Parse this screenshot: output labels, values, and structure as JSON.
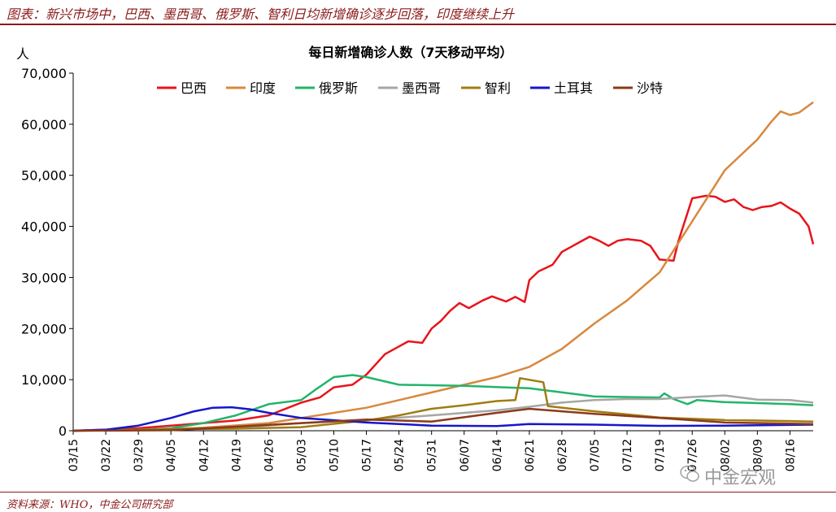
{
  "figure_title": "图表：新兴市场中，巴西、墨西哥、俄罗斯、智利日均新增确诊逐步回落，印度继续上升",
  "source": "资料来源：WHO，中金公司研究部",
  "watermark": {
    "text": "中金宏观",
    "icon": "wechat-icon"
  },
  "chart_data": {
    "type": "line",
    "title": "每日新增确诊人数（7天移动平均）",
    "ylabel": "人",
    "ylim": [
      0,
      70000
    ],
    "yticks": [
      "0",
      "10,000",
      "20,000",
      "30,000",
      "40,000",
      "50,000",
      "60,000",
      "70,000"
    ],
    "x_start": "03/15",
    "x_end": "08/21",
    "xticks": [
      "03/15",
      "03/22",
      "03/29",
      "04/05",
      "04/12",
      "04/19",
      "04/26",
      "05/03",
      "05/10",
      "05/17",
      "05/24",
      "05/31",
      "06/07",
      "06/14",
      "06/21",
      "06/28",
      "07/05",
      "07/12",
      "07/19",
      "07/26",
      "08/02",
      "08/09",
      "08/16"
    ],
    "legend_position": "top",
    "series": [
      {
        "name": "巴西",
        "color": "#e8141b",
        "points": [
          [
            "03/15",
            0
          ],
          [
            "03/22",
            200
          ],
          [
            "03/29",
            500
          ],
          [
            "04/05",
            1000
          ],
          [
            "04/12",
            1500
          ],
          [
            "04/19",
            2000
          ],
          [
            "04/26",
            3000
          ],
          [
            "05/03",
            5500
          ],
          [
            "05/07",
            6500
          ],
          [
            "05/10",
            8500
          ],
          [
            "05/14",
            9000
          ],
          [
            "05/17",
            11000
          ],
          [
            "05/21",
            15000
          ],
          [
            "05/24",
            16500
          ],
          [
            "05/26",
            17500
          ],
          [
            "05/29",
            17200
          ],
          [
            "05/31",
            20000
          ],
          [
            "06/02",
            21500
          ],
          [
            "06/04",
            23500
          ],
          [
            "06/06",
            25000
          ],
          [
            "06/08",
            24000
          ],
          [
            "06/11",
            25500
          ],
          [
            "06/13",
            26300
          ],
          [
            "06/16",
            25300
          ],
          [
            "06/18",
            26200
          ],
          [
            "06/20",
            25200
          ],
          [
            "06/21",
            29500
          ],
          [
            "06/23",
            31200
          ],
          [
            "06/26",
            32500
          ],
          [
            "06/28",
            35000
          ],
          [
            "06/30",
            36000
          ],
          [
            "07/02",
            37000
          ],
          [
            "07/04",
            38000
          ],
          [
            "07/06",
            37200
          ],
          [
            "07/08",
            36200
          ],
          [
            "07/10",
            37200
          ],
          [
            "07/12",
            37500
          ],
          [
            "07/15",
            37200
          ],
          [
            "07/17",
            36200
          ],
          [
            "07/19",
            33500
          ],
          [
            "07/22",
            33300
          ],
          [
            "07/23",
            37000
          ],
          [
            "07/26",
            45500
          ],
          [
            "07/29",
            46000
          ],
          [
            "07/31",
            45800
          ],
          [
            "08/02",
            44800
          ],
          [
            "08/04",
            45300
          ],
          [
            "08/06",
            43800
          ],
          [
            "08/08",
            43200
          ],
          [
            "08/10",
            43800
          ],
          [
            "08/12",
            44000
          ],
          [
            "08/14",
            44700
          ],
          [
            "08/16",
            43500
          ],
          [
            "08/18",
            42500
          ],
          [
            "08/20",
            40000
          ],
          [
            "08/21",
            36500
          ]
        ]
      },
      {
        "name": "印度",
        "color": "#d8883e",
        "points": [
          [
            "03/15",
            0
          ],
          [
            "03/29",
            100
          ],
          [
            "04/12",
            600
          ],
          [
            "04/26",
            1500
          ],
          [
            "05/10",
            3500
          ],
          [
            "05/17",
            4500
          ],
          [
            "05/24",
            6000
          ],
          [
            "05/31",
            7500
          ],
          [
            "06/07",
            9000
          ],
          [
            "06/14",
            10500
          ],
          [
            "06/21",
            12500
          ],
          [
            "06/28",
            16000
          ],
          [
            "07/05",
            21000
          ],
          [
            "07/12",
            25500
          ],
          [
            "07/19",
            31000
          ],
          [
            "07/26",
            41000
          ],
          [
            "08/02",
            51000
          ],
          [
            "08/09",
            57000
          ],
          [
            "08/12",
            60500
          ],
          [
            "08/14",
            62500
          ],
          [
            "08/16",
            61800
          ],
          [
            "08/18",
            62300
          ],
          [
            "08/21",
            64300
          ]
        ]
      },
      {
        "name": "俄罗斯",
        "color": "#23b46a",
        "points": [
          [
            "03/15",
            0
          ],
          [
            "03/29",
            200
          ],
          [
            "04/05",
            500
          ],
          [
            "04/12",
            1500
          ],
          [
            "04/19",
            3000
          ],
          [
            "04/26",
            5200
          ],
          [
            "05/03",
            6000
          ],
          [
            "05/06",
            8000
          ],
          [
            "05/10",
            10500
          ],
          [
            "05/14",
            10900
          ],
          [
            "05/17",
            10500
          ],
          [
            "05/24",
            9000
          ],
          [
            "06/07",
            8800
          ],
          [
            "06/21",
            8300
          ],
          [
            "07/05",
            6700
          ],
          [
            "07/19",
            6500
          ],
          [
            "07/20",
            7300
          ],
          [
            "07/22",
            6200
          ],
          [
            "07/25",
            5200
          ],
          [
            "07/27",
            6000
          ],
          [
            "08/02",
            5600
          ],
          [
            "08/16",
            5200
          ],
          [
            "08/21",
            5000
          ]
        ]
      },
      {
        "name": "墨西哥",
        "color": "#a6a6a6",
        "points": [
          [
            "03/15",
            0
          ],
          [
            "04/05",
            200
          ],
          [
            "04/19",
            600
          ],
          [
            "05/03",
            1500
          ],
          [
            "05/17",
            2100
          ],
          [
            "05/31",
            3000
          ],
          [
            "06/14",
            4000
          ],
          [
            "06/21",
            4700
          ],
          [
            "06/28",
            5500
          ],
          [
            "07/05",
            6000
          ],
          [
            "07/12",
            6200
          ],
          [
            "07/19",
            6200
          ],
          [
            "07/26",
            6600
          ],
          [
            "08/02",
            6900
          ],
          [
            "08/09",
            6100
          ],
          [
            "08/16",
            6000
          ],
          [
            "08/21",
            5500
          ]
        ]
      },
      {
        "name": "智利",
        "color": "#a07c14",
        "points": [
          [
            "03/15",
            0
          ],
          [
            "04/05",
            300
          ],
          [
            "04/19",
            400
          ],
          [
            "05/03",
            700
          ],
          [
            "05/17",
            2000
          ],
          [
            "05/24",
            3000
          ],
          [
            "05/31",
            4300
          ],
          [
            "06/07",
            5000
          ],
          [
            "06/14",
            5800
          ],
          [
            "06/18",
            6000
          ],
          [
            "06/19",
            10300
          ],
          [
            "06/24",
            9500
          ],
          [
            "06/25",
            4800
          ],
          [
            "07/05",
            3800
          ],
          [
            "07/19",
            2600
          ],
          [
            "08/02",
            2100
          ],
          [
            "08/16",
            1900
          ],
          [
            "08/21",
            1800
          ]
        ]
      },
      {
        "name": "土耳其",
        "color": "#1616cc",
        "points": [
          [
            "03/15",
            0
          ],
          [
            "03/22",
            200
          ],
          [
            "03/29",
            1000
          ],
          [
            "04/05",
            2500
          ],
          [
            "04/10",
            3800
          ],
          [
            "04/14",
            4500
          ],
          [
            "04/18",
            4600
          ],
          [
            "04/22",
            4200
          ],
          [
            "04/26",
            3500
          ],
          [
            "05/03",
            2500
          ],
          [
            "05/17",
            1600
          ],
          [
            "05/31",
            1000
          ],
          [
            "06/14",
            900
          ],
          [
            "06/21",
            1300
          ],
          [
            "07/05",
            1200
          ],
          [
            "07/19",
            950
          ],
          [
            "08/02",
            1000
          ],
          [
            "08/21",
            1200
          ]
        ]
      },
      {
        "name": "沙特",
        "color": "#8b3a1a",
        "points": [
          [
            "03/15",
            0
          ],
          [
            "04/05",
            100
          ],
          [
            "04/19",
            800
          ],
          [
            "05/03",
            1500
          ],
          [
            "05/17",
            2200
          ],
          [
            "05/31",
            1800
          ],
          [
            "06/14",
            3500
          ],
          [
            "06/21",
            4300
          ],
          [
            "06/28",
            3800
          ],
          [
            "07/05",
            3300
          ],
          [
            "07/19",
            2500
          ],
          [
            "08/02",
            1600
          ],
          [
            "08/16",
            1400
          ],
          [
            "08/21",
            1300
          ]
        ]
      }
    ]
  }
}
